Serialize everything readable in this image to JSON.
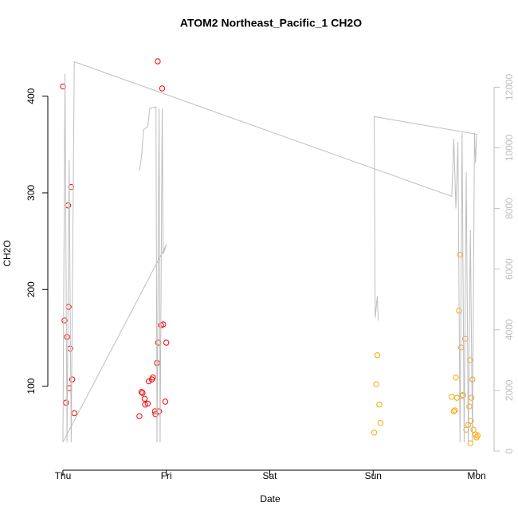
{
  "chart_data": {
    "type": "scatter",
    "title": "ATOM2 Northeast_Pacific_1 CH2O",
    "x_label": "Date",
    "y_label": "CH2O",
    "xlim": [
      -0.146,
      4.154
    ],
    "xticks": [
      {
        "value": 0,
        "label": "Thu"
      },
      {
        "value": 1,
        "label": "Fri"
      },
      {
        "value": 2,
        "label": "Sat"
      },
      {
        "value": 3,
        "label": "Sun"
      },
      {
        "value": 4,
        "label": "Mon"
      }
    ],
    "ylim": [
      23,
      450
    ],
    "yticks": [
      100,
      200,
      300,
      400
    ],
    "y2lim": [
      -316,
      13300
    ],
    "y2ticks": [
      0,
      2000,
      4000,
      6000,
      8000,
      10000,
      12000
    ],
    "series": [
      {
        "color": "#ff0000",
        "x": [
          0.0,
          0.015,
          0.03,
          0.04,
          0.05,
          0.055,
          0.06,
          0.07,
          0.08,
          0.09,
          0.11,
          0.74,
          0.76,
          0.77,
          0.79,
          0.795,
          0.82,
          0.83,
          0.86,
          0.87,
          0.89,
          0.895,
          0.91,
          0.917,
          0.92,
          0.93,
          0.95,
          0.96,
          0.97,
          0.99,
          1.0
        ],
        "values": [
          410,
          168,
          83,
          151,
          287,
          182,
          98,
          139,
          306,
          107,
          72,
          69,
          94,
          93,
          87,
          81,
          82,
          105,
          107,
          109,
          74,
          71,
          124,
          436,
          145,
          74,
          163,
          408,
          164,
          84,
          145
        ]
      },
      {
        "color": "#ffa500",
        "x": [
          3.01,
          3.03,
          3.04,
          3.06,
          3.07,
          3.76,
          3.78,
          3.79,
          3.8,
          3.81,
          3.83,
          3.84,
          3.85,
          3.86,
          3.87,
          3.89,
          3.9,
          3.92,
          3.93,
          3.935,
          3.94,
          3.945,
          3.95,
          3.96,
          3.97,
          3.99,
          4.0,
          4.01
        ],
        "values": [
          52,
          102,
          132,
          81,
          62,
          89,
          74,
          75,
          109,
          88,
          178,
          236,
          140,
          90,
          91,
          149,
          55,
          60,
          79,
          127,
          41,
          64,
          88,
          107,
          55,
          50,
          47,
          49
        ]
      },
      {
        "color": "#bebebe",
        "type": "line",
        "axis": "y2",
        "x": [
          1.0,
          0.0,
          0.02,
          0.04,
          0.06,
          0.08,
          0.11,
          3.76,
          3.78,
          3.8,
          3.82,
          3.84,
          3.86,
          3.88,
          3.9,
          3.92,
          3.94,
          3.96,
          3.98,
          3.99,
          4.0,
          3.01,
          3.02,
          3.04,
          3.05,
          null,
          0.74,
          0.76,
          0.78,
          0.82,
          0.84,
          0.9,
          0.91,
          0.93,
          0.94,
          0.96,
          0.97,
          1.0
        ],
        "values": [
          6800,
          290,
          12450,
          290,
          9600,
          290,
          12840,
          8400,
          10300,
          8000,
          10200,
          290,
          10500,
          290,
          9200,
          290,
          7300,
          290,
          10500,
          9500,
          10450,
          11030,
          4400,
          5100,
          4300,
          null,
          9250,
          9700,
          10600,
          10700,
          11300,
          11350,
          290,
          11300,
          290,
          11300,
          6500,
          6800
        ]
      }
    ]
  }
}
